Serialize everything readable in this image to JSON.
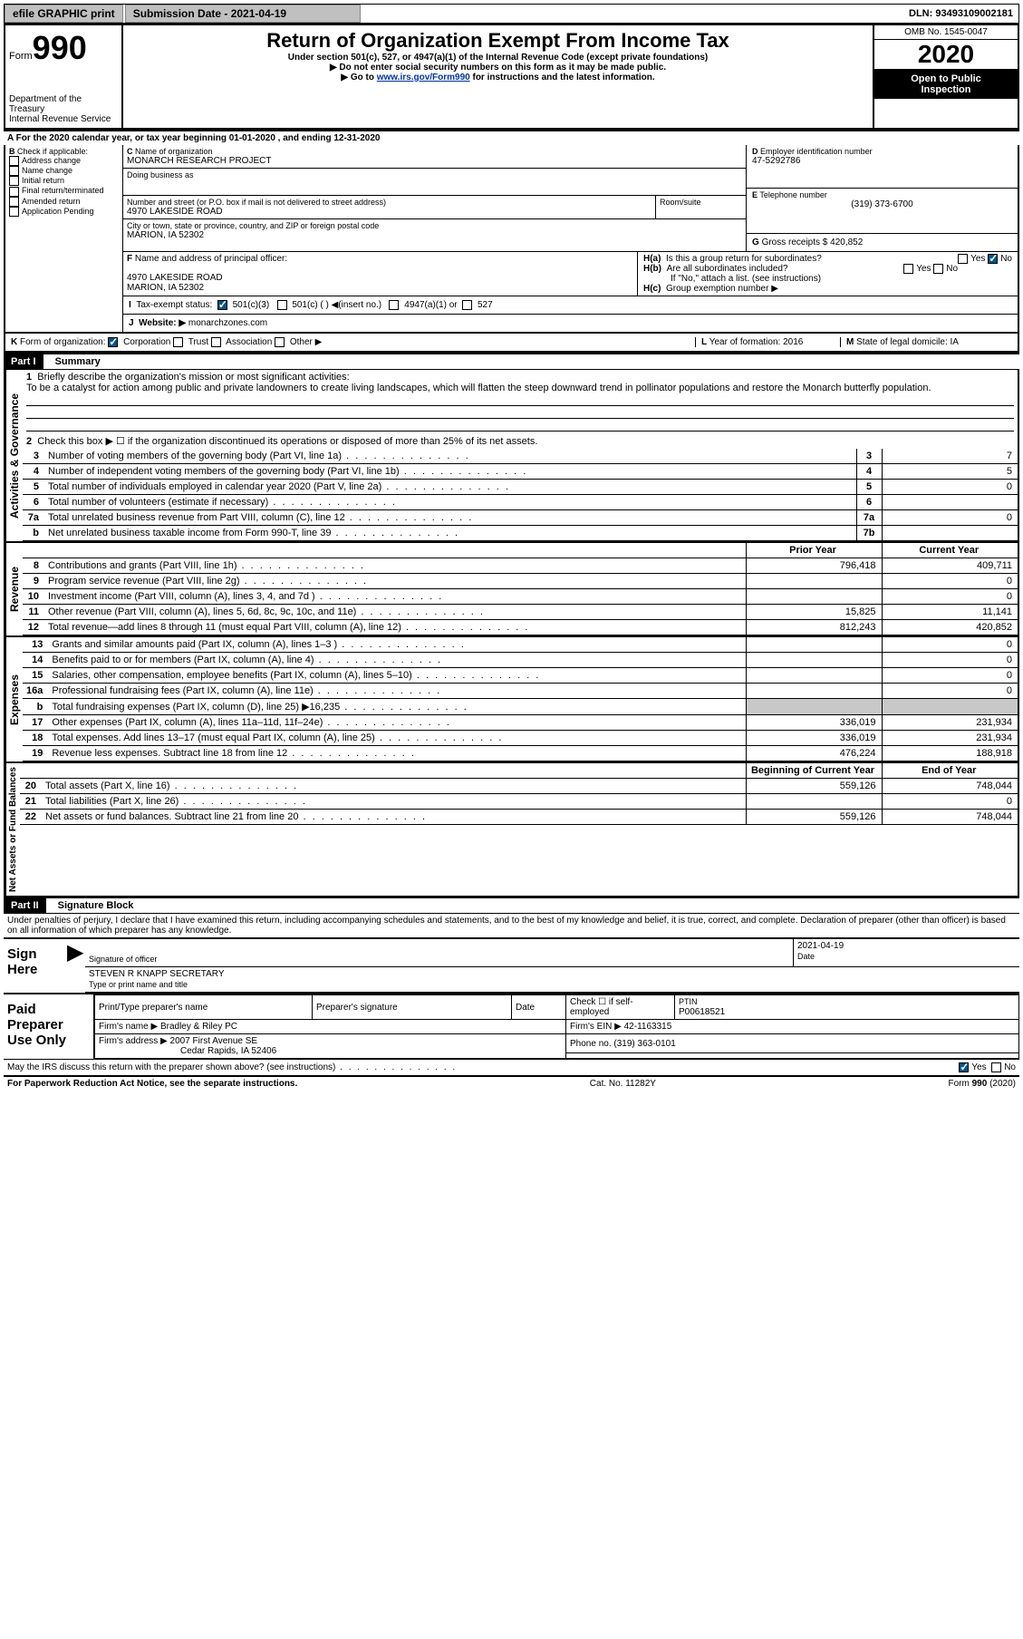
{
  "top": {
    "efile": "efile GRAPHIC print",
    "sub_label": "Submission Date - 2021-04-19",
    "dln": "DLN: 93493109002181"
  },
  "header": {
    "form_word": "Form",
    "form_num": "990",
    "dept1": "Department of the Treasury",
    "dept2": "Internal Revenue Service",
    "title": "Return of Organization Exempt From Income Tax",
    "sub1": "Under section 501(c), 527, or 4947(a)(1) of the Internal Revenue Code (except private foundations)",
    "sub2": "Do not enter social security numbers on this form as it may be made public.",
    "sub3_pre": "Go to ",
    "sub3_link": "www.irs.gov/Form990",
    "sub3_post": " for instructions and the latest information.",
    "omb": "OMB No. 1545-0047",
    "year": "2020",
    "inspect1": "Open to Public",
    "inspect2": "Inspection"
  },
  "lineA": "For the 2020 calendar year, or tax year beginning 01-01-2020    , and ending 12-31-2020",
  "boxB": {
    "label": "Check if applicable:",
    "opts": [
      "Address change",
      "Name change",
      "Initial return",
      "Final return/terminated",
      "Amended return",
      "Application Pending"
    ]
  },
  "boxC": {
    "label": "Name of organization",
    "name": "MONARCH RESEARCH PROJECT",
    "dba_label": "Doing business as",
    "addr_label": "Number and street (or P.O. box if mail is not delivered to street address)",
    "room": "Room/suite",
    "addr": "4970 LAKESIDE ROAD",
    "city_label": "City or town, state or province, country, and ZIP or foreign postal code",
    "city": "MARION, IA  52302"
  },
  "boxD": {
    "label": "Employer identification number",
    "val": "47-5292786"
  },
  "boxE": {
    "label": "Telephone number",
    "val": "(319) 373-6700"
  },
  "boxG": {
    "label": "Gross receipts $",
    "val": "420,852"
  },
  "boxF": {
    "label": "Name and address of principal officer:",
    "addr1": "4970 LAKESIDE ROAD",
    "addr2": "MARION, IA  52302"
  },
  "boxH": {
    "ha": "Is this a group return for subordinates?",
    "hb": "Are all subordinates included?",
    "note": "If \"No,\" attach a list. (see instructions)",
    "hc": "Group exemption number ▶",
    "yes": "Yes",
    "no": "No"
  },
  "boxI": {
    "label": "Tax-exempt status:",
    "o1": "501(c)(3)",
    "o2": "501(c) (  ) ◀(insert no.)",
    "o3": "4947(a)(1) or",
    "o4": "527"
  },
  "boxJ": {
    "label": "Website: ▶",
    "val": "monarchzones.com"
  },
  "boxK": {
    "label": "Form of organization:",
    "o1": "Corporation",
    "o2": "Trust",
    "o3": "Association",
    "o4": "Other ▶"
  },
  "boxL": {
    "label": "Year of formation:",
    "val": "2016"
  },
  "boxM": {
    "label": "State of legal domicile:",
    "val": "IA"
  },
  "part1": {
    "label": "Part I",
    "title": "Summary",
    "l1": "Briefly describe the organization's mission or most significant activities:",
    "l1text": "To be a catalyst for action among public and private landowners to create living landscapes, which will flatten the steep downward trend in pollinator populations and restore the Monarch butterfly population.",
    "l2": "Check this box ▶ ☐ if the organization discontinued its operations or disposed of more than 25% of its net assets.",
    "rows_gov": [
      {
        "n": "3",
        "t": "Number of voting members of the governing body (Part VI, line 1a)",
        "b": "3",
        "v": "7"
      },
      {
        "n": "4",
        "t": "Number of independent voting members of the governing body (Part VI, line 1b)",
        "b": "4",
        "v": "5"
      },
      {
        "n": "5",
        "t": "Total number of individuals employed in calendar year 2020 (Part V, line 2a)",
        "b": "5",
        "v": "0"
      },
      {
        "n": "6",
        "t": "Total number of volunteers (estimate if necessary)",
        "b": "6",
        "v": ""
      },
      {
        "n": "7a",
        "t": "Total unrelated business revenue from Part VIII, column (C), line 12",
        "b": "7a",
        "v": "0"
      },
      {
        "n": "b",
        "t": "Net unrelated business taxable income from Form 990-T, line 39",
        "b": "7b",
        "v": ""
      }
    ],
    "py": "Prior Year",
    "cy": "Current Year",
    "rows_rev": [
      {
        "n": "8",
        "t": "Contributions and grants (Part VIII, line 1h)",
        "py": "796,418",
        "cy": "409,711"
      },
      {
        "n": "9",
        "t": "Program service revenue (Part VIII, line 2g)",
        "py": "",
        "cy": "0"
      },
      {
        "n": "10",
        "t": "Investment income (Part VIII, column (A), lines 3, 4, and 7d )",
        "py": "",
        "cy": "0"
      },
      {
        "n": "11",
        "t": "Other revenue (Part VIII, column (A), lines 5, 6d, 8c, 9c, 10c, and 11e)",
        "py": "15,825",
        "cy": "11,141"
      },
      {
        "n": "12",
        "t": "Total revenue—add lines 8 through 11 (must equal Part VIII, column (A), line 12)",
        "py": "812,243",
        "cy": "420,852"
      }
    ],
    "rows_exp": [
      {
        "n": "13",
        "t": "Grants and similar amounts paid (Part IX, column (A), lines 1–3 )",
        "py": "",
        "cy": "0"
      },
      {
        "n": "14",
        "t": "Benefits paid to or for members (Part IX, column (A), line 4)",
        "py": "",
        "cy": "0"
      },
      {
        "n": "15",
        "t": "Salaries, other compensation, employee benefits (Part IX, column (A), lines 5–10)",
        "py": "",
        "cy": "0"
      },
      {
        "n": "16a",
        "t": "Professional fundraising fees (Part IX, column (A), line 11e)",
        "py": "",
        "cy": "0"
      },
      {
        "n": "b",
        "t": "Total fundraising expenses (Part IX, column (D), line 25) ▶16,235",
        "py": "shade",
        "cy": "shade"
      },
      {
        "n": "17",
        "t": "Other expenses (Part IX, column (A), lines 11a–11d, 11f–24e)",
        "py": "336,019",
        "cy": "231,934"
      },
      {
        "n": "18",
        "t": "Total expenses. Add lines 13–17 (must equal Part IX, column (A), line 25)",
        "py": "336,019",
        "cy": "231,934"
      },
      {
        "n": "19",
        "t": "Revenue less expenses. Subtract line 18 from line 12",
        "py": "476,224",
        "cy": "188,918"
      }
    ],
    "by": "Beginning of Current Year",
    "ey": "End of Year",
    "rows_net": [
      {
        "n": "20",
        "t": "Total assets (Part X, line 16)",
        "py": "559,126",
        "cy": "748,044"
      },
      {
        "n": "21",
        "t": "Total liabilities (Part X, line 26)",
        "py": "",
        "cy": "0"
      },
      {
        "n": "22",
        "t": "Net assets or fund balances. Subtract line 21 from line 20",
        "py": "559,126",
        "cy": "748,044"
      }
    ]
  },
  "part2": {
    "label": "Part II",
    "title": "Signature Block",
    "decl": "Under penalties of perjury, I declare that I have examined this return, including accompanying schedules and statements, and to the best of my knowledge and belief, it is true, correct, and complete. Declaration of preparer (other than officer) is based on all information of which preparer has any knowledge.",
    "sign": "Sign Here",
    "sig_officer": "Signature of officer",
    "date": "Date",
    "date_val": "2021-04-19",
    "name_title": "STEVEN R KNAPP SECRETARY",
    "type_name": "Type or print name and title"
  },
  "prep": {
    "label": "Paid Preparer Use Only",
    "cols": [
      "Print/Type preparer's name",
      "Preparer's signature",
      "Date"
    ],
    "self": "Check ☐ if self-employed",
    "ptin_label": "PTIN",
    "ptin": "P00618521",
    "firm_name_label": "Firm's name    ▶",
    "firm_name": "Bradley & Riley PC",
    "firm_ein_label": "Firm's EIN ▶",
    "firm_ein": "42-1163315",
    "firm_addr_label": "Firm's address ▶",
    "firm_addr1": "2007 First Avenue SE",
    "firm_addr2": "Cedar Rapids, IA  52406",
    "phone_label": "Phone no.",
    "phone": "(319) 363-0101",
    "discuss": "May the IRS discuss this return with the preparer shown above? (see instructions)"
  },
  "footer": {
    "left": "For Paperwork Reduction Act Notice, see the separate instructions.",
    "mid": "Cat. No. 11282Y",
    "right": "Form 990 (2020)"
  },
  "labels": {
    "B": "B",
    "C": "C",
    "D": "D",
    "E": "E",
    "F": "F",
    "G": "G",
    "Ha": "H(a)",
    "Hb": "H(b)",
    "Hc": "H(c)",
    "I": "I",
    "J": "J",
    "K": "K",
    "L": "L",
    "M": "M",
    "A": "A",
    "l1": "1",
    "l2": "2",
    "sect_gov": "Activities & Governance",
    "sect_rev": "Revenue",
    "sect_exp": "Expenses",
    "sect_net": "Net Assets or Fund Balances"
  }
}
